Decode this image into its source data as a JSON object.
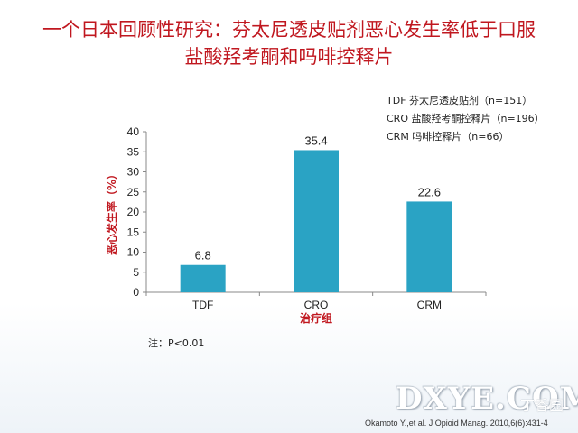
{
  "title": {
    "line1": "一个日本回顾性研究：芬太尼透皮贴剂恶心发生率低于口服",
    "line2": "盐酸羟考酮和吗啡控释片"
  },
  "legend": [
    "TDF 芬太尼透皮贴剂（n=151）",
    "CRO 盐酸羟考酮控释片（n=196）",
    "CRM 吗啡控释片（n=66）"
  ],
  "note": "注：P<0.01",
  "watermark": "DXYE.COM",
  "watermark_extra": "丁香园",
  "citation": "Okamoto Y.,et al. J Opioid Manag. 2010,6(6):431-4",
  "colors": {
    "bar": "#2aa3c4",
    "title": "#c0171f",
    "axis_title": "#c0171f"
  },
  "chart_data": {
    "type": "bar",
    "categories": [
      "TDF",
      "CRO",
      "CRM"
    ],
    "values": [
      6.8,
      35.4,
      22.6
    ],
    "value_labels": [
      "6.8",
      "35.4",
      "22.6"
    ],
    "xlabel": "治疗组",
    "ylabel": "恶心发生率（%）",
    "ylim": [
      0,
      40
    ],
    "yticks": [
      "0",
      "5",
      "10",
      "15",
      "20",
      "25",
      "30",
      "35",
      "40"
    ],
    "grid": false
  }
}
